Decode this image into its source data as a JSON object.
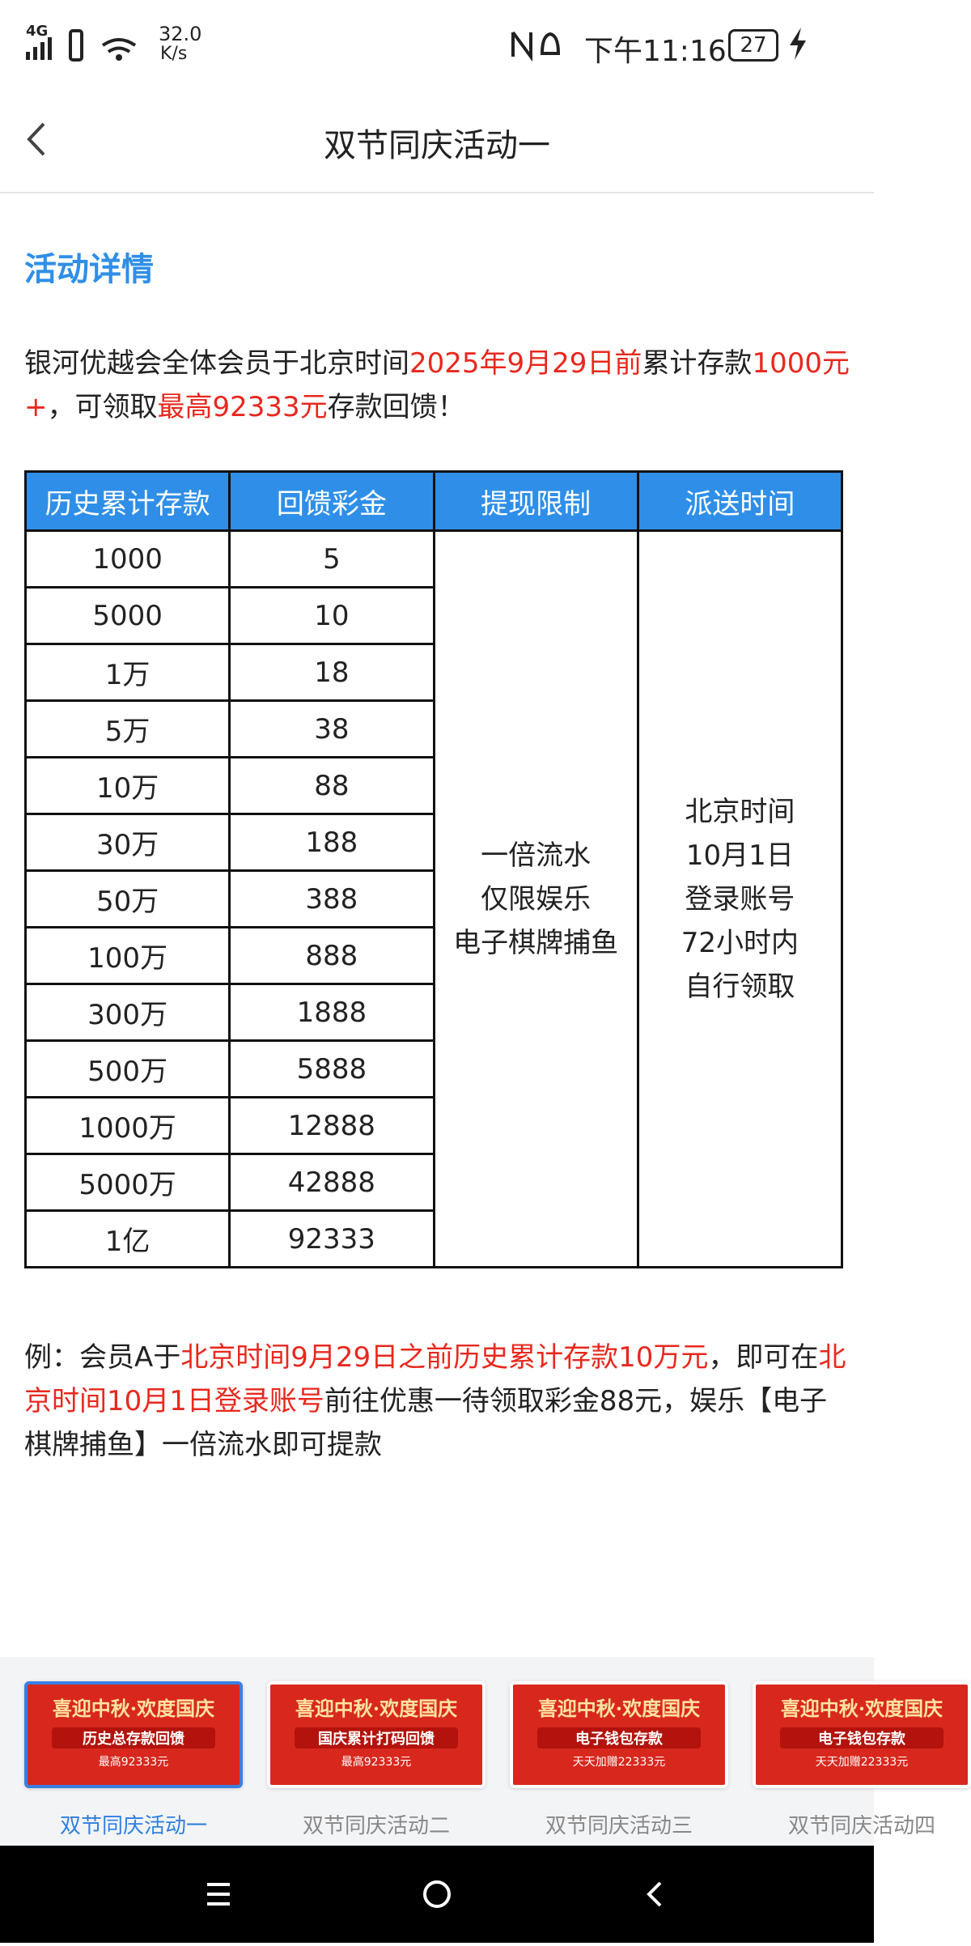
{
  "status_bar": {
    "network": "4G",
    "speed": "32.0",
    "speed_unit": "K/s",
    "time": "下午11:16",
    "battery": "27"
  },
  "header": {
    "title": "双节同庆活动一"
  },
  "section_title": "活动详情",
  "intro": [
    {
      "text": "银河优越会全体会员于北京时间",
      "highlight": false
    },
    {
      "text": "2025年9月29日前",
      "highlight": true
    },
    {
      "text": "累计存款",
      "highlight": false
    },
    {
      "text": "1000元+",
      "highlight": true
    },
    {
      "text": "，可领取",
      "highlight": false
    },
    {
      "text": "最高92333元",
      "highlight": true
    },
    {
      "text": "存款回馈！",
      "highlight": false
    }
  ],
  "table": {
    "headers": [
      "历史累计存款",
      "回馈彩金",
      "提现限制",
      "派送时间"
    ],
    "rows": [
      [
        "1000",
        "5"
      ],
      [
        "5000",
        "10"
      ],
      [
        "1万",
        "18"
      ],
      [
        "5万",
        "38"
      ],
      [
        "10万",
        "88"
      ],
      [
        "30万",
        "188"
      ],
      [
        "50万",
        "388"
      ],
      [
        "100万",
        "888"
      ],
      [
        "300万",
        "1888"
      ],
      [
        "500万",
        "5888"
      ],
      [
        "1000万",
        "12888"
      ],
      [
        "5000万",
        "42888"
      ],
      [
        "1亿",
        "92333"
      ]
    ],
    "withdrawal": [
      "一倍流水",
      "仅限娱乐",
      "电子棋牌捕鱼"
    ],
    "delivery": [
      "北京时间",
      "10月1日",
      "登录账号",
      "72小时内",
      "自行领取"
    ]
  },
  "example": [
    {
      "text": "例：会员A于",
      "highlight": false
    },
    {
      "text": "北京时间9月29日之前历史累计存款10万元",
      "highlight": true
    },
    {
      "text": "，即可在",
      "highlight": false
    },
    {
      "text": "北京时间10月1日登录账号",
      "highlight": true
    },
    {
      "text": "前往优惠一待领取彩金88元，娱乐【电子棋牌捕鱼】一倍流水即可提款",
      "highlight": false
    }
  ],
  "tabs": [
    {
      "label": "双节同庆活动一",
      "banner_title": "喜迎中秋·欢度国庆",
      "banner_subtitle": "历史总存款回馈",
      "banner_note": "最高92333元",
      "selected": true
    },
    {
      "label": "双节同庆活动二",
      "banner_title": "喜迎中秋·欢度国庆",
      "banner_subtitle": "国庆累计打码回馈",
      "banner_note": "最高92333元",
      "selected": false
    },
    {
      "label": "双节同庆活动三",
      "banner_title": "喜迎中秋·欢度国庆",
      "banner_subtitle": "电子钱包存款",
      "banner_note": "天天加赠22333元",
      "selected": false
    },
    {
      "label": "双节同庆活动四",
      "banner_title": "喜迎中秋·欢度国庆",
      "banner_subtitle": "电子钱包存款",
      "banner_note": "天天加赠22333元",
      "selected": false
    }
  ]
}
